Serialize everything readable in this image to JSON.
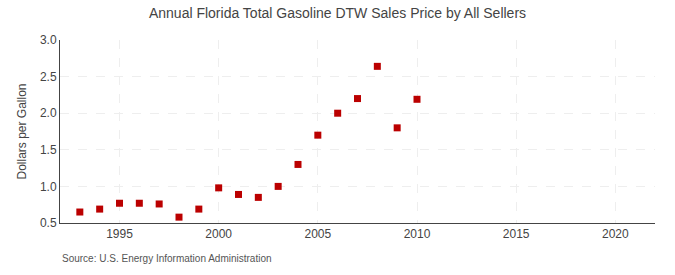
{
  "chart_data": {
    "type": "scatter",
    "title": "Annual Florida Total Gasoline DTW Sales Price by All Sellers",
    "ylabel": "Dollars per Gallon",
    "source": "Source: U.S. Energy Information Administration",
    "x": [
      1993,
      1994,
      1995,
      1996,
      1997,
      1998,
      1999,
      2000,
      2001,
      2002,
      2003,
      2004,
      2005,
      2006,
      2007,
      2008,
      2009,
      2010
    ],
    "values": [
      0.65,
      0.69,
      0.77,
      0.77,
      0.76,
      0.58,
      0.69,
      0.98,
      0.89,
      0.85,
      1.0,
      1.3,
      1.7,
      2.0,
      2.2,
      2.64,
      1.8,
      2.19
    ],
    "color": "#bb0000",
    "marker": "square",
    "xlim": [
      1992,
      2022
    ],
    "ylim": [
      0.5,
      3.0
    ],
    "xticks": [
      1995,
      2000,
      2005,
      2010,
      2015,
      2020
    ],
    "yticks": [
      0.5,
      {
        "value": 1.0,
        "label": "1.0"
      },
      1.5,
      {
        "value": 2.0,
        "label": "2.0"
      },
      2.5,
      {
        "value": 3.0,
        "label": "3.0"
      }
    ],
    "grid": true
  }
}
